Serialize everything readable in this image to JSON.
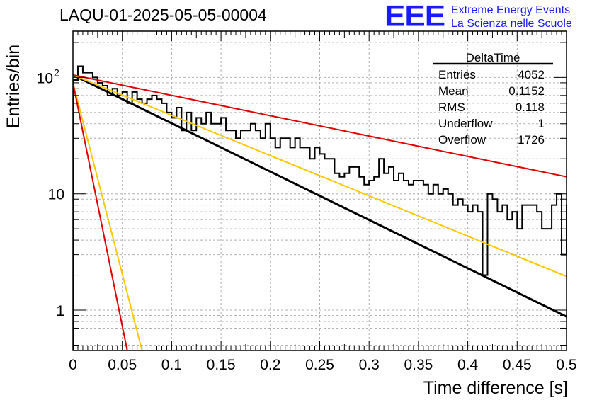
{
  "title": "LAQU-01-2025-05-05-00004",
  "logo": {
    "text": "EEE",
    "line1": "Extreme Energy Events",
    "line2": "La Scienza nelle Scuole",
    "color": "#1a1aff"
  },
  "chart_data": {
    "type": "histogram",
    "title": "LAQU-01-2025-05-05-00004",
    "xlabel": "Time difference [s]",
    "ylabel": "Entries/bin",
    "xlim": [
      0,
      0.5
    ],
    "ylim": [
      0.45,
      250
    ],
    "yscale": "log",
    "grid": true,
    "x_ticks": [
      "0",
      "0.05",
      "0.1",
      "0.15",
      "0.2",
      "0.25",
      "0.3",
      "0.35",
      "0.4",
      "0.45",
      "0.5"
    ],
    "y_ticks": [
      "1",
      "10",
      "10^2"
    ],
    "bin_width": 0.005,
    "histogram_values": [
      95,
      125,
      110,
      110,
      100,
      90,
      85,
      70,
      80,
      70,
      75,
      60,
      75,
      65,
      60,
      65,
      70,
      65,
      60,
      50,
      45,
      55,
      35,
      50,
      35,
      45,
      40,
      50,
      40,
      40,
      45,
      35,
      35,
      30,
      35,
      35,
      40,
      35,
      30,
      40,
      30,
      25,
      30,
      30,
      25,
      30,
      25,
      25,
      20,
      25,
      22,
      20,
      20,
      15,
      14,
      15,
      17,
      17,
      14,
      12,
      13,
      14,
      20,
      15,
      17,
      13,
      15,
      13,
      12,
      13,
      13,
      12,
      10,
      12,
      10,
      11,
      10,
      8,
      9,
      8,
      7,
      8,
      7,
      2,
      10,
      9,
      7,
      8,
      6,
      7,
      5,
      8,
      8,
      8,
      7,
      5,
      5,
      8,
      10,
      3,
      8,
      6,
      10,
      6,
      8,
      3,
      5,
      7,
      8,
      6,
      5,
      5,
      7,
      5,
      5,
      5,
      5,
      5,
      5,
      4,
      3,
      4,
      4,
      3,
      4,
      4,
      4,
      3,
      4,
      3,
      4,
      3,
      3,
      4,
      4,
      3,
      3,
      4,
      3,
      2,
      2,
      2,
      1,
      1,
      1,
      1,
      2,
      1,
      1,
      1
    ],
    "stats": {
      "name": "DeltaTime",
      "rows": [
        {
          "label": "Entries",
          "value": "4052"
        },
        {
          "label": "Mean",
          "value": "0.1152"
        },
        {
          "label": "RMS",
          "value": "0.118"
        },
        {
          "label": "Underflow",
          "value": "1"
        },
        {
          "label": "Overflow",
          "value": "1726"
        }
      ]
    },
    "fit_lines": [
      {
        "color": "#000000",
        "x0": 0,
        "y0": 105,
        "x1": 0.5,
        "y1": 0.88
      },
      {
        "color": "#ffc800",
        "x0": 0,
        "y0": 105,
        "x1": 0.5,
        "y1": 1.95
      },
      {
        "color": "#e00000",
        "x0": 0,
        "y0": 105,
        "x1": 0.5,
        "y1": 14
      },
      {
        "color": "#ffc800",
        "x0": 0,
        "y0": 90,
        "x1": 0.07,
        "y1": 0.45
      },
      {
        "color": "#e00000",
        "x0": 0,
        "y0": 90,
        "x1": 0.055,
        "y1": 0.45
      }
    ]
  }
}
